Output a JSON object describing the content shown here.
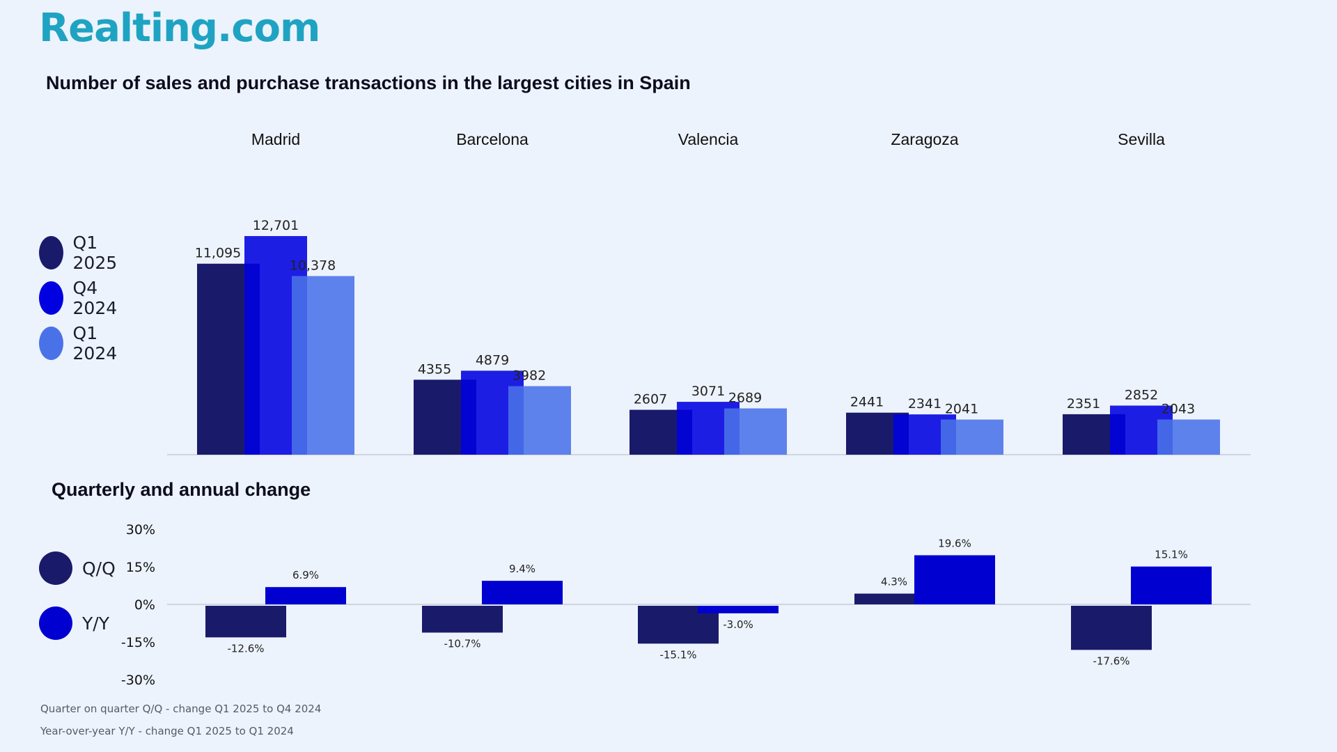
{
  "brand": {
    "logo_text": "Realting.com"
  },
  "chart_data": [
    {
      "type": "bar",
      "title": "Number of sales and purchase transactions in the largest cities in Spain",
      "categories": [
        "Madrid",
        "Barcelona",
        "Valencia",
        "Zaragoza",
        "Sevilla"
      ],
      "series": [
        {
          "name": "Q1 2025",
          "color": "#1a1a6b",
          "values": [
            11095,
            4355,
            2607,
            2441,
            2351
          ],
          "labels": [
            "11,095",
            "4355",
            "2607",
            "2441",
            "2351"
          ]
        },
        {
          "name": "Q4 2024",
          "color": "#0000e0",
          "values": [
            12701,
            4879,
            3071,
            2341,
            2852
          ],
          "labels": [
            "12,701",
            "4879",
            "3071",
            "2341",
            "2852"
          ]
        },
        {
          "name": "Q1 2024",
          "color": "#4a72e8",
          "values": [
            10378,
            3982,
            2689,
            2041,
            2043
          ],
          "labels": [
            "10,378",
            "3982",
            "2689",
            "2041",
            "2043"
          ]
        }
      ],
      "ylim": [
        0,
        14000
      ],
      "grid": false,
      "legend": "left"
    },
    {
      "type": "bar",
      "title": "Quarterly and annual change",
      "categories": [
        "Madrid",
        "Barcelona",
        "Valencia",
        "Zaragoza",
        "Sevilla"
      ],
      "series": [
        {
          "name": "Q/Q",
          "color": "#1a1a6b",
          "values": [
            -12.6,
            -10.7,
            -15.1,
            4.3,
            -17.6
          ],
          "labels": [
            "-12.6%",
            "-10.7%",
            "-15.1%",
            "4.3%",
            "-17.6%"
          ]
        },
        {
          "name": "Y/Y",
          "color": "#0000d0",
          "values": [
            6.9,
            9.4,
            -3.0,
            19.6,
            15.1
          ],
          "labels": [
            "6.9%",
            "9.4%",
            "-3.0%",
            "19.6%",
            "15.1%"
          ]
        }
      ],
      "ylim": [
        -30,
        30
      ],
      "yticks": [
        "30%",
        "15%",
        "0%",
        "-15%",
        "-30%"
      ],
      "grid": false,
      "legend": "left"
    }
  ],
  "notes": [
    "Quarter on quarter Q/Q  - change Q1 2025 to Q4 2024",
    "Year-over-year Y/Y - change Q1 2025 to Q1 2024"
  ]
}
